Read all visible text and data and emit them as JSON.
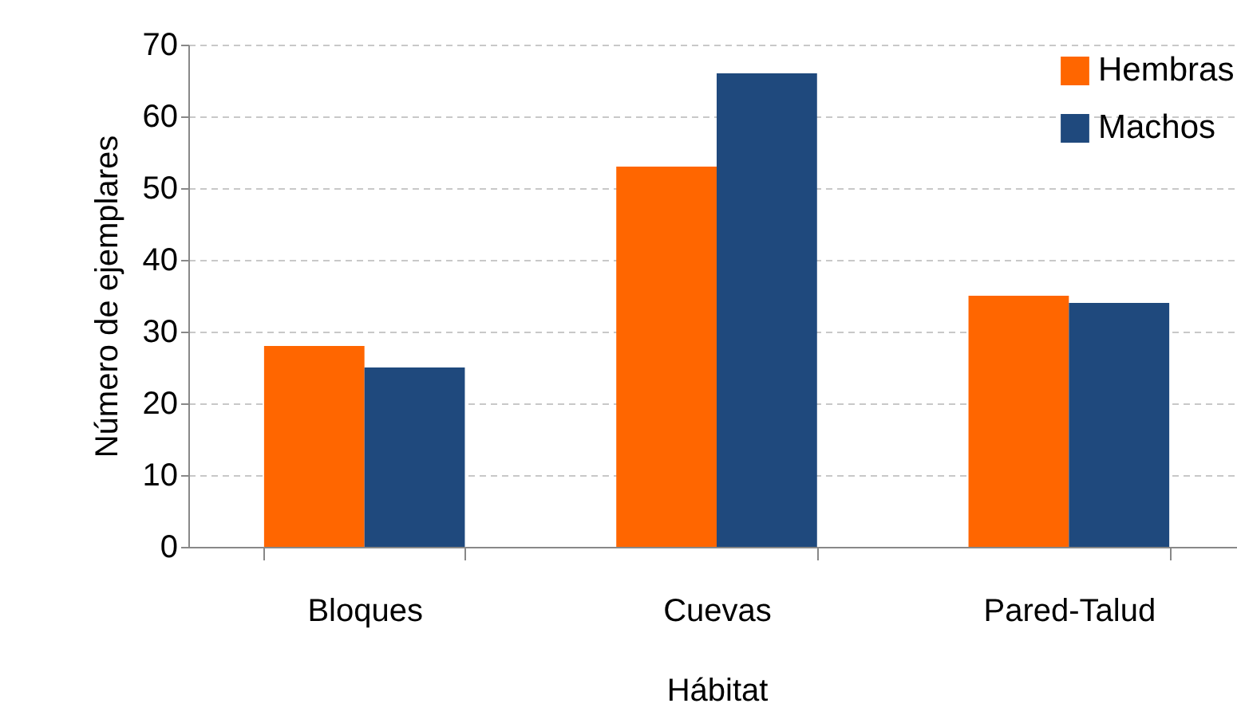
{
  "chart_data": {
    "type": "bar",
    "xlabel": "Hábitat",
    "ylabel": "Número de ejemplares",
    "categories": [
      "Bloques",
      "Cuevas",
      "Pared-Talud"
    ],
    "series": [
      {
        "name": "Hembras",
        "color": "#ff6600",
        "values": [
          28,
          53,
          35
        ]
      },
      {
        "name": "Machos",
        "color": "#1f497d",
        "values": [
          25,
          66,
          34
        ]
      }
    ],
    "ylim": [
      0,
      70
    ],
    "yticks": [
      0,
      10,
      20,
      30,
      40,
      50,
      60,
      70
    ],
    "grid": "y",
    "legend": "top right"
  }
}
